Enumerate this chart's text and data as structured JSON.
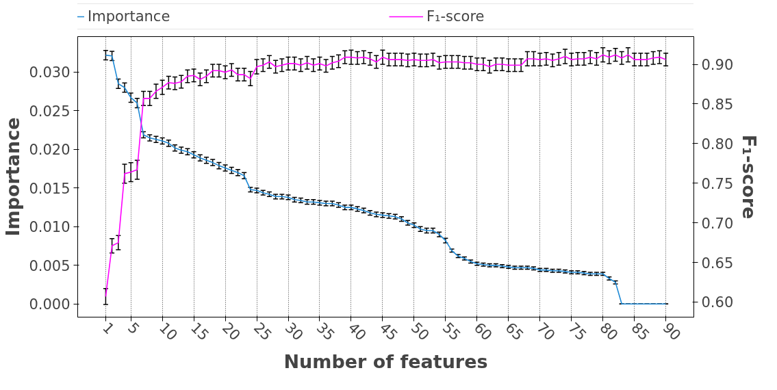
{
  "chart_data": {
    "type": "line",
    "xlabel": "Number of features",
    "ylabel": "Importance",
    "y2label": "F₁-score",
    "x": [
      1,
      2,
      3,
      4,
      5,
      6,
      7,
      8,
      9,
      10,
      11,
      12,
      13,
      14,
      15,
      16,
      17,
      18,
      19,
      20,
      21,
      22,
      23,
      24,
      25,
      26,
      27,
      28,
      29,
      30,
      31,
      32,
      33,
      34,
      35,
      36,
      37,
      38,
      39,
      40,
      41,
      42,
      43,
      44,
      45,
      46,
      47,
      48,
      49,
      50,
      51,
      52,
      53,
      54,
      55,
      56,
      57,
      58,
      59,
      60,
      61,
      62,
      63,
      64,
      65,
      66,
      67,
      68,
      69,
      70,
      71,
      72,
      73,
      74,
      75,
      76,
      77,
      78,
      79,
      80,
      81,
      82,
      83,
      84,
      85,
      86,
      87,
      88,
      89,
      90
    ],
    "series": [
      {
        "name": "Importance",
        "color": "#1f8ad6",
        "values": [
          0.0322,
          0.0321,
          0.0285,
          0.028,
          0.0267,
          0.026,
          0.0219,
          0.0215,
          0.0213,
          0.0211,
          0.0208,
          0.0202,
          0.0199,
          0.0197,
          0.0193,
          0.0189,
          0.0186,
          0.0183,
          0.0179,
          0.0176,
          0.0173,
          0.017,
          0.0166,
          0.0148,
          0.0147,
          0.0144,
          0.0142,
          0.0139,
          0.0139,
          0.0138,
          0.0135,
          0.0134,
          0.0132,
          0.0132,
          0.0131,
          0.013,
          0.013,
          0.0128,
          0.0125,
          0.0125,
          0.0123,
          0.0121,
          0.0118,
          0.0116,
          0.0115,
          0.0114,
          0.0113,
          0.011,
          0.0105,
          0.0102,
          0.0097,
          0.0095,
          0.0095,
          0.009,
          0.0082,
          0.0069,
          0.0062,
          0.0059,
          0.0055,
          0.0052,
          0.0051,
          0.005,
          0.005,
          0.0049,
          0.0048,
          0.0047,
          0.0047,
          0.0047,
          0.0046,
          0.0044,
          0.0044,
          0.0043,
          0.0043,
          0.0042,
          0.0041,
          0.0041,
          0.004,
          0.0039,
          0.0039,
          0.0039,
          0.0033,
          0.0028,
          0,
          0,
          0,
          0,
          0,
          0,
          0,
          0
        ],
        "errors": [
          0.0006,
          0.0006,
          0.0006,
          0.0006,
          0.0006,
          0.0006,
          0.0004,
          0.0004,
          0.0004,
          0.0004,
          0.0004,
          0.0004,
          0.0004,
          0.0004,
          0.0004,
          0.0004,
          0.0004,
          0.0004,
          0.0004,
          0.0004,
          0.0004,
          0.0004,
          0.0004,
          0.0003,
          0.0003,
          0.0003,
          0.0003,
          0.0003,
          0.0003,
          0.0003,
          0.0003,
          0.0003,
          0.0003,
          0.0003,
          0.0003,
          0.0003,
          0.0003,
          0.0003,
          0.0003,
          0.0003,
          0.0003,
          0.0003,
          0.0003,
          0.0003,
          0.0003,
          0.0003,
          0.0003,
          0.0003,
          0.0003,
          0.0003,
          0.0003,
          0.0003,
          0.0003,
          0.0003,
          0.0003,
          0.0002,
          0.0002,
          0.0002,
          0.0002,
          0.0002,
          0.0002,
          0.0002,
          0.0002,
          0.0002,
          0.0002,
          0.0002,
          0.0002,
          0.0002,
          0.0002,
          0.0002,
          0.0002,
          0.0002,
          0.0002,
          0.0002,
          0.0002,
          0.0002,
          0.0002,
          0.0002,
          0.0002,
          0.0002,
          0.0002,
          0.0002,
          0,
          0,
          0,
          0,
          0,
          0,
          0,
          0
        ]
      },
      {
        "name": "F₁-score",
        "color": "#ff00ff",
        "axis": "y2",
        "values": [
          0.607,
          0.671,
          0.675,
          0.762,
          0.764,
          0.767,
          0.857,
          0.857,
          0.866,
          0.871,
          0.877,
          0.876,
          0.878,
          0.885,
          0.886,
          0.881,
          0.885,
          0.892,
          0.892,
          0.89,
          0.893,
          0.887,
          0.887,
          0.882,
          0.897,
          0.899,
          0.903,
          0.897,
          0.899,
          0.901,
          0.901,
          0.899,
          0.902,
          0.899,
          0.901,
          0.898,
          0.902,
          0.904,
          0.909,
          0.909,
          0.908,
          0.909,
          0.907,
          0.903,
          0.909,
          0.906,
          0.906,
          0.906,
          0.905,
          0.906,
          0.905,
          0.905,
          0.906,
          0.902,
          0.903,
          0.903,
          0.903,
          0.902,
          0.902,
          0.9,
          0.9,
          0.897,
          0.9,
          0.9,
          0.899,
          0.899,
          0.899,
          0.907,
          0.907,
          0.906,
          0.907,
          0.905,
          0.907,
          0.91,
          0.906,
          0.907,
          0.907,
          0.909,
          0.907,
          0.912,
          0.909,
          0.912,
          0.908,
          0.912,
          0.906,
          0.906,
          0.906,
          0.908,
          0.909,
          0.906
        ],
        "errors": [
          0.01,
          0.009,
          0.009,
          0.012,
          0.012,
          0.012,
          0.009,
          0.009,
          0.009,
          0.009,
          0.008,
          0.008,
          0.008,
          0.008,
          0.008,
          0.008,
          0.008,
          0.008,
          0.008,
          0.008,
          0.008,
          0.008,
          0.008,
          0.009,
          0.009,
          0.008,
          0.008,
          0.008,
          0.008,
          0.008,
          0.008,
          0.008,
          0.008,
          0.008,
          0.008,
          0.008,
          0.008,
          0.008,
          0.008,
          0.009,
          0.008,
          0.008,
          0.008,
          0.008,
          0.009,
          0.008,
          0.008,
          0.008,
          0.008,
          0.008,
          0.008,
          0.008,
          0.008,
          0.008,
          0.008,
          0.008,
          0.008,
          0.008,
          0.008,
          0.008,
          0.008,
          0.008,
          0.008,
          0.008,
          0.008,
          0.008,
          0.008,
          0.009,
          0.009,
          0.008,
          0.008,
          0.008,
          0.008,
          0.009,
          0.008,
          0.008,
          0.008,
          0.008,
          0.008,
          0.009,
          0.008,
          0.008,
          0.008,
          0.009,
          0.008,
          0.008,
          0.008,
          0.008,
          0.008,
          0.008
        ]
      }
    ],
    "xlim": [
      -3.45,
      94.45
    ],
    "xticks": [
      1,
      5,
      10,
      15,
      20,
      25,
      30,
      35,
      40,
      45,
      50,
      55,
      60,
      65,
      70,
      75,
      80,
      85,
      90
    ],
    "ylim": [
      -0.0017,
      0.0346
    ],
    "yticks": [
      {
        "value": 0,
        "label": "0.000"
      },
      {
        "value": 0.005,
        "label": "0.005"
      },
      {
        "value": 0.01,
        "label": "0.010"
      },
      {
        "value": 0.015,
        "label": "0.015"
      },
      {
        "value": 0.02,
        "label": "0.020"
      },
      {
        "value": 0.025,
        "label": "0.025"
      },
      {
        "value": 0.03,
        "label": "0.030"
      }
    ],
    "y2lim": [
      0.581,
      0.935
    ],
    "y2ticks": [
      {
        "value": 0.6,
        "label": "0.60"
      },
      {
        "value": 0.65,
        "label": "0.65"
      },
      {
        "value": 0.7,
        "label": "0.70"
      },
      {
        "value": 0.75,
        "label": "0.75"
      },
      {
        "value": 0.8,
        "label": "0.80"
      },
      {
        "value": 0.85,
        "label": "0.85"
      },
      {
        "value": 0.9,
        "label": "0.90"
      }
    ],
    "grid": "x",
    "legend": "top",
    "marker": "none",
    "line_style": "solid"
  }
}
